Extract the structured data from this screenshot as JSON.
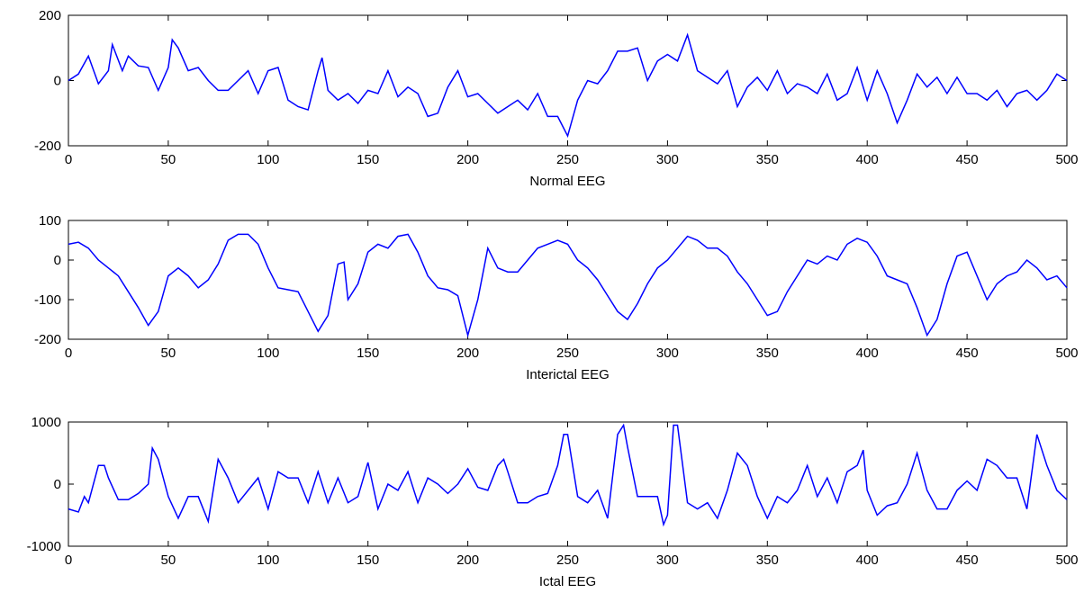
{
  "chart_data": [
    {
      "type": "line",
      "xlabel": "Normal EEG",
      "xlim": [
        0,
        500
      ],
      "ylim": [
        -200,
        200
      ],
      "xticks": [
        0,
        50,
        100,
        150,
        200,
        250,
        300,
        350,
        400,
        450,
        500
      ],
      "yticks": [
        -200,
        0,
        200
      ],
      "color": "#0000ff",
      "x": [
        0,
        5,
        10,
        15,
        20,
        22,
        27,
        30,
        35,
        40,
        45,
        50,
        52,
        55,
        60,
        65,
        70,
        75,
        80,
        85,
        90,
        95,
        100,
        105,
        110,
        115,
        120,
        125,
        127,
        130,
        135,
        140,
        145,
        150,
        155,
        160,
        165,
        170,
        175,
        180,
        185,
        190,
        195,
        200,
        205,
        210,
        215,
        220,
        225,
        230,
        235,
        240,
        245,
        250,
        255,
        260,
        265,
        270,
        275,
        280,
        285,
        290,
        295,
        300,
        305,
        310,
        315,
        320,
        325,
        330,
        335,
        340,
        345,
        350,
        355,
        360,
        365,
        370,
        375,
        380,
        385,
        390,
        395,
        400,
        405,
        410,
        415,
        420,
        425,
        430,
        435,
        440,
        445,
        450,
        455,
        460,
        465,
        470,
        475,
        480,
        485,
        490,
        495,
        500
      ],
      "values": [
        0,
        20,
        75,
        -10,
        30,
        110,
        30,
        75,
        45,
        40,
        -30,
        40,
        125,
        100,
        30,
        40,
        0,
        -30,
        -30,
        0,
        30,
        -40,
        30,
        40,
        -60,
        -80,
        -90,
        30,
        70,
        -30,
        -60,
        -40,
        -70,
        -30,
        -40,
        30,
        -50,
        -20,
        -40,
        -110,
        -100,
        -20,
        30,
        -50,
        -40,
        -70,
        -100,
        -80,
        -60,
        -90,
        -40,
        -110,
        -110,
        -170,
        -60,
        0,
        -10,
        30,
        90,
        90,
        100,
        0,
        60,
        80,
        60,
        140,
        30,
        10,
        -10,
        30,
        -80,
        -20,
        10,
        -30,
        30,
        -40,
        -10,
        -20,
        -40,
        20,
        -60,
        -40,
        40,
        -60,
        30,
        -40,
        -130,
        -60,
        20,
        -20,
        10,
        -40,
        10,
        -40,
        -40,
        -60,
        -30,
        -80,
        -40,
        -30,
        -60,
        -30,
        20,
        0
      ]
    },
    {
      "type": "line",
      "xlabel": "Interictal EEG",
      "xlim": [
        0,
        500
      ],
      "ylim": [
        -200,
        100
      ],
      "xticks": [
        0,
        50,
        100,
        150,
        200,
        250,
        300,
        350,
        400,
        450,
        500
      ],
      "yticks": [
        -200,
        -100,
        0,
        100
      ],
      "color": "#0000ff",
      "x": [
        0,
        5,
        10,
        15,
        20,
        25,
        30,
        35,
        40,
        45,
        50,
        55,
        60,
        65,
        70,
        75,
        80,
        85,
        90,
        95,
        100,
        105,
        110,
        115,
        120,
        125,
        130,
        135,
        138,
        140,
        145,
        150,
        155,
        160,
        165,
        170,
        175,
        180,
        185,
        190,
        195,
        200,
        205,
        210,
        215,
        220,
        225,
        230,
        235,
        240,
        245,
        250,
        255,
        260,
        265,
        270,
        275,
        280,
        285,
        290,
        295,
        300,
        305,
        310,
        315,
        320,
        325,
        330,
        335,
        340,
        345,
        350,
        355,
        360,
        365,
        370,
        375,
        380,
        385,
        390,
        395,
        400,
        405,
        410,
        415,
        420,
        425,
        430,
        435,
        440,
        445,
        450,
        455,
        460,
        465,
        470,
        475,
        480,
        485,
        490,
        495,
        500
      ],
      "values": [
        40,
        45,
        30,
        0,
        -20,
        -40,
        -80,
        -120,
        -165,
        -130,
        -40,
        -20,
        -40,
        -70,
        -50,
        -10,
        50,
        65,
        65,
        40,
        -20,
        -70,
        -75,
        -80,
        -130,
        -180,
        -140,
        -10,
        -5,
        -100,
        -60,
        20,
        40,
        30,
        60,
        65,
        20,
        -40,
        -70,
        -75,
        -90,
        -190,
        -100,
        30,
        -20,
        -30,
        -30,
        0,
        30,
        40,
        50,
        40,
        0,
        -20,
        -50,
        -90,
        -130,
        -150,
        -110,
        -60,
        -20,
        0,
        30,
        60,
        50,
        30,
        30,
        10,
        -30,
        -60,
        -100,
        -140,
        -130,
        -80,
        -40,
        0,
        -10,
        10,
        0,
        40,
        55,
        45,
        10,
        -40,
        -50,
        -60,
        -120,
        -190,
        -150,
        -60,
        10,
        20,
        -40,
        -100,
        -60,
        -40,
        -30,
        0,
        -20,
        -50,
        -40,
        -70
      ]
    },
    {
      "type": "line",
      "xlabel": "Ictal EEG",
      "xlim": [
        0,
        500
      ],
      "ylim": [
        -1000,
        1000
      ],
      "xticks": [
        0,
        50,
        100,
        150,
        200,
        250,
        300,
        350,
        400,
        450,
        500
      ],
      "yticks": [
        -1000,
        0,
        1000
      ],
      "color": "#0000ff",
      "x": [
        0,
        5,
        8,
        10,
        15,
        18,
        20,
        25,
        30,
        35,
        40,
        42,
        45,
        50,
        55,
        60,
        65,
        70,
        75,
        80,
        85,
        90,
        95,
        100,
        105,
        110,
        115,
        120,
        125,
        130,
        135,
        140,
        145,
        150,
        155,
        160,
        165,
        170,
        175,
        180,
        185,
        190,
        195,
        200,
        205,
        210,
        215,
        218,
        220,
        225,
        230,
        235,
        240,
        245,
        248,
        250,
        255,
        260,
        265,
        270,
        275,
        278,
        280,
        285,
        290,
        295,
        298,
        300,
        303,
        305,
        310,
        315,
        320,
        325,
        330,
        335,
        340,
        345,
        350,
        355,
        360,
        365,
        370,
        375,
        380,
        385,
        390,
        395,
        398,
        400,
        405,
        410,
        415,
        420,
        425,
        430,
        435,
        440,
        445,
        450,
        455,
        460,
        465,
        470,
        475,
        480,
        485,
        490,
        495,
        500
      ],
      "values": [
        -400,
        -450,
        -200,
        -300,
        300,
        300,
        100,
        -250,
        -250,
        -150,
        0,
        580,
        400,
        -200,
        -550,
        -200,
        -200,
        -600,
        400,
        100,
        -300,
        -100,
        100,
        -400,
        200,
        100,
        100,
        -300,
        200,
        -300,
        100,
        -300,
        -200,
        350,
        -400,
        0,
        -100,
        200,
        -300,
        100,
        0,
        -150,
        0,
        250,
        -50,
        -100,
        300,
        400,
        200,
        -300,
        -300,
        -200,
        -150,
        300,
        800,
        800,
        -200,
        -300,
        -100,
        -550,
        800,
        950,
        600,
        -200,
        -200,
        -200,
        -650,
        -500,
        950,
        950,
        -300,
        -400,
        -300,
        -550,
        -100,
        500,
        300,
        -200,
        -550,
        -200,
        -300,
        -100,
        300,
        -200,
        100,
        -300,
        200,
        300,
        550,
        -100,
        -500,
        -350,
        -300,
        0,
        500,
        -100,
        -400,
        -400,
        -100,
        50,
        -100,
        400,
        300,
        100,
        100,
        -400,
        800,
        300,
        -100,
        -250
      ]
    }
  ]
}
